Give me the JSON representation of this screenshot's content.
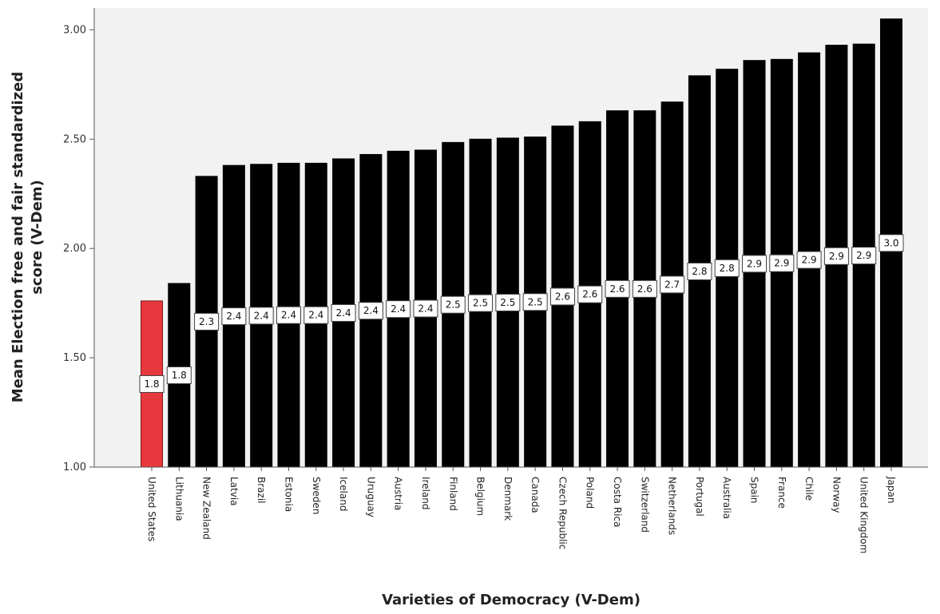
{
  "chart_data": {
    "type": "bar",
    "title": "",
    "xlabel": "Varieties of Democracy (V-Dem)",
    "ylabel_lines": [
      "Mean Election free and fair standardized",
      "score (V-Dem)"
    ],
    "ylim": [
      1.0,
      3.1
    ],
    "yticks": [
      "1.00",
      "1.50",
      "2.00",
      "2.50",
      "3.00"
    ],
    "ytick_values": [
      1.0,
      1.5,
      2.0,
      2.5,
      3.0
    ],
    "grid": false,
    "categories": [
      "United States",
      "Lithuania",
      "New Zealand",
      "Latvia",
      "Brazil",
      "Estonia",
      "Sweden",
      "Iceland",
      "Uruguay",
      "Austria",
      "Ireland",
      "Finland",
      "Belgium",
      "Denmark",
      "Canada",
      "Czech Republic",
      "Poland",
      "Costa Rica",
      "Switzerland",
      "Netherlands",
      "Portugal",
      "Australia",
      "Spain",
      "France",
      "Chile",
      "Norway",
      "United Kingdom",
      "Japan"
    ],
    "values": [
      1.76,
      1.84,
      2.33,
      2.38,
      2.385,
      2.39,
      2.39,
      2.41,
      2.43,
      2.445,
      2.45,
      2.485,
      2.5,
      2.505,
      2.51,
      2.56,
      2.58,
      2.63,
      2.63,
      2.67,
      2.79,
      2.82,
      2.86,
      2.865,
      2.895,
      2.93,
      2.935,
      3.05
    ],
    "data_labels": [
      "1.8",
      "1.8",
      "2.3",
      "2.4",
      "2.4",
      "2.4",
      "2.4",
      "2.4",
      "2.4",
      "2.4",
      "2.4",
      "2.5",
      "2.5",
      "2.5",
      "2.5",
      "2.6",
      "2.6",
      "2.6",
      "2.6",
      "2.7",
      "2.8",
      "2.8",
      "2.9",
      "2.9",
      "2.9",
      "2.9",
      "2.9",
      "3.0"
    ],
    "highlight_index": 0,
    "colors": {
      "bar": "#000000",
      "highlight": "#e8383d",
      "plot_bg": "#f2f2f2",
      "axis": "#555555"
    }
  }
}
